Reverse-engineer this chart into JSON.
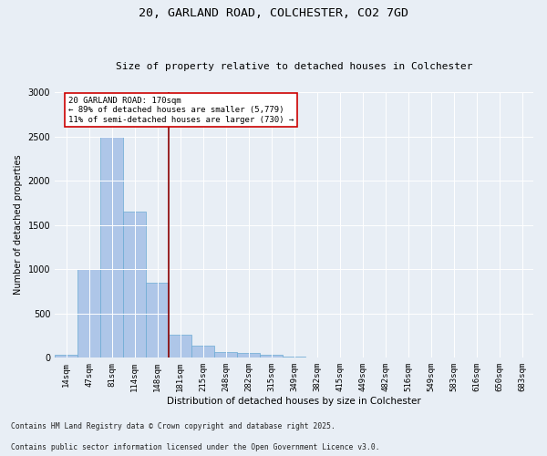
{
  "title1": "20, GARLAND ROAD, COLCHESTER, CO2 7GD",
  "title2": "Size of property relative to detached houses in Colchester",
  "xlabel": "Distribution of detached houses by size in Colchester",
  "ylabel": "Number of detached properties",
  "categories": [
    "14sqm",
    "47sqm",
    "81sqm",
    "114sqm",
    "148sqm",
    "181sqm",
    "215sqm",
    "248sqm",
    "282sqm",
    "315sqm",
    "349sqm",
    "382sqm",
    "415sqm",
    "449sqm",
    "482sqm",
    "516sqm",
    "549sqm",
    "583sqm",
    "616sqm",
    "650sqm",
    "683sqm"
  ],
  "values": [
    30,
    1000,
    2500,
    1650,
    850,
    260,
    140,
    70,
    55,
    35,
    10,
    3,
    1,
    0,
    0,
    0,
    0,
    0,
    0,
    0,
    0
  ],
  "bar_color": "#aec6e8",
  "bar_edge_color": "#6aaad4",
  "vline_color": "#8b0000",
  "annotation_line1": "20 GARLAND ROAD: 170sqm",
  "annotation_line2": "← 89% of detached houses are smaller (5,779)",
  "annotation_line3": "11% of semi-detached houses are larger (730) →",
  "annotation_box_color": "#ffffff",
  "annotation_box_edge": "#cc0000",
  "ylim": [
    0,
    3000
  ],
  "yticks": [
    0,
    500,
    1000,
    1500,
    2000,
    2500,
    3000
  ],
  "footnote1": "Contains HM Land Registry data © Crown copyright and database right 2025.",
  "footnote2": "Contains public sector information licensed under the Open Government Licence v3.0.",
  "bg_color": "#e8eef5",
  "plot_bg_color": "#e8eef5"
}
